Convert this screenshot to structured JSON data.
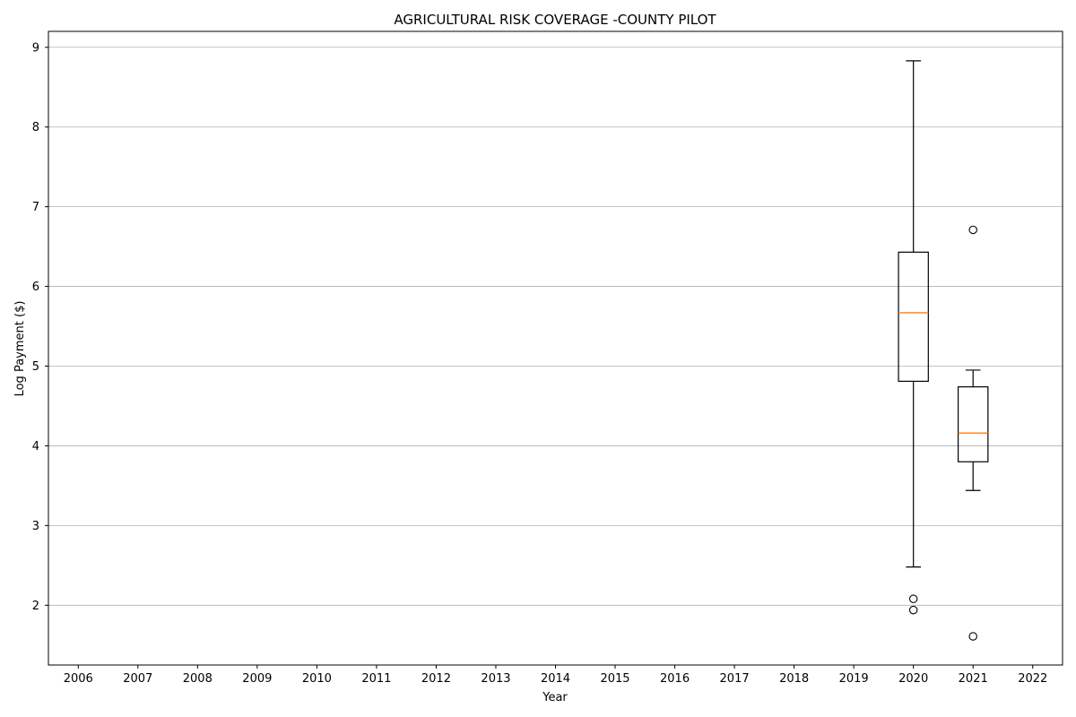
{
  "chart_data": {
    "type": "box",
    "title": "AGRICULTURAL RISK COVERAGE -COUNTY PILOT",
    "xlabel": "Year",
    "ylabel": "Log Payment ($)",
    "categories": [
      "2006",
      "2007",
      "2008",
      "2009",
      "2010",
      "2011",
      "2012",
      "2013",
      "2014",
      "2015",
      "2016",
      "2017",
      "2018",
      "2019",
      "2020",
      "2021",
      "2022"
    ],
    "ylim": [
      1.25,
      9.2
    ],
    "yticks": [
      2,
      3,
      4,
      5,
      6,
      7,
      8,
      9
    ],
    "grid": "y",
    "boxes": [
      {
        "category": "2020",
        "whisker_low": 2.48,
        "q1": 4.81,
        "median": 5.67,
        "q3": 6.43,
        "whisker_high": 8.83,
        "outliers": [
          2.08,
          1.94
        ]
      },
      {
        "category": "2021",
        "whisker_low": 3.44,
        "q1": 3.8,
        "median": 4.16,
        "q3": 4.74,
        "whisker_high": 4.95,
        "outliers": [
          6.71,
          1.61
        ]
      }
    ],
    "colors": {
      "box": "#000000",
      "median": "#ff7f0e",
      "grid": "#b0b0b0"
    }
  }
}
